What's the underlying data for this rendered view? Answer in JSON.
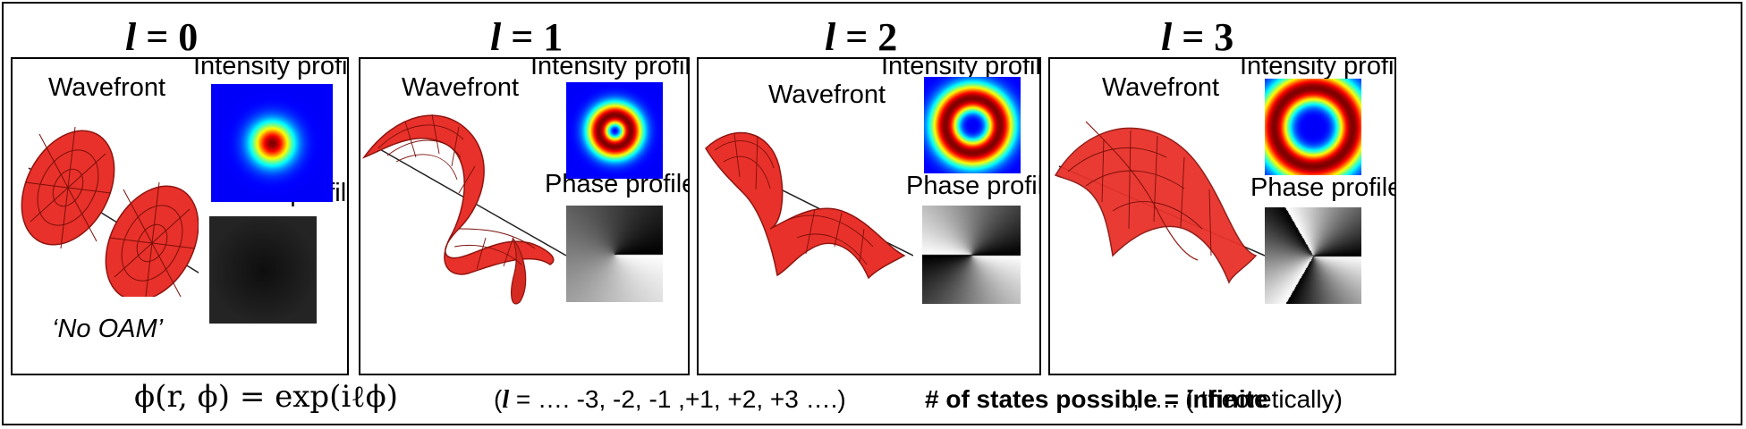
{
  "modes": [
    {
      "var": "l",
      "eq": " = 0",
      "wavefront": "Wavefront",
      "intensity": "Intensity profile",
      "phase": "Phase profile",
      "note": "‘No OAM’",
      "oam": 0
    },
    {
      "var": "l",
      "eq": " = 1",
      "wavefront": "Wavefront",
      "intensity": "Intensity profile",
      "phase": "Phase profile",
      "oam": 1
    },
    {
      "var": "l",
      "eq": " = 2",
      "wavefront": "Wavefront",
      "intensity": "Intensity profile",
      "phase": "Phase profile",
      "oam": 2
    },
    {
      "var": "l",
      "eq": " = 3",
      "wavefront": "Wavefront",
      "intensity": "Intensity profile",
      "phase": "Phase profile",
      "oam": 3
    }
  ],
  "footer": {
    "formula": "ϕ(r, ϕ) = exp(iℓϕ)",
    "range_open": "(",
    "range_var": "l",
    "range_rest": " = …. -3, -2, -1 ,+1, +2, +3 ….)",
    "states": "# of states possible = infinite",
    "theory": ",    …. ( theoretically)"
  },
  "colors": {
    "wavefront": "#e8312a",
    "wavefront_dark": "#8e1510",
    "field_blue": "#1b2fa8"
  }
}
